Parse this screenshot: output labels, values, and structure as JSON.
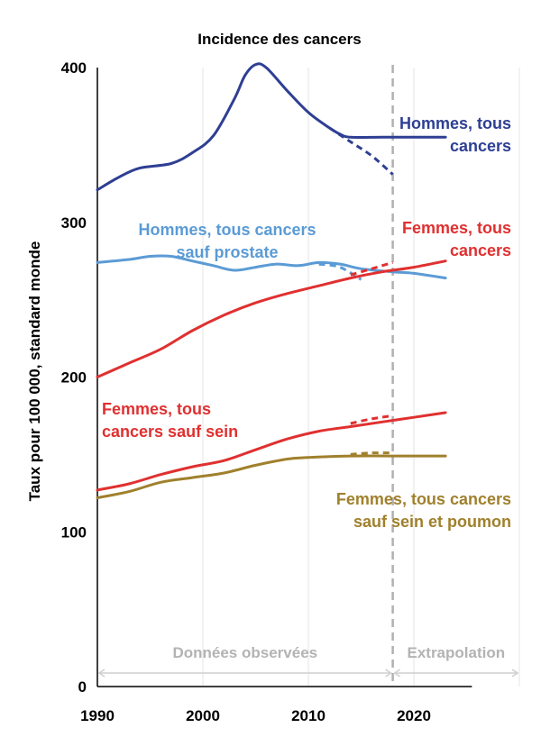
{
  "chart_data": {
    "type": "line",
    "title": "Incidence des cancers",
    "xlabel": "",
    "ylabel": "Taux pour 100 000, standard monde",
    "xlim": [
      1990,
      2030
    ],
    "ylim": [
      0,
      400
    ],
    "x_ticks": [
      "1990",
      "2000",
      "2010",
      "2020"
    ],
    "y_ticks": [
      "0",
      "100",
      "200",
      "300",
      "400"
    ],
    "grid": "vertical",
    "observed_until": 2018,
    "period_labels": {
      "observed": "Données observées",
      "extrapolation": "Extrapolation"
    },
    "series": [
      {
        "name": "Hommes, tous cancers",
        "color": "#2e3f93",
        "values": [
          [
            1990,
            321
          ],
          [
            1992,
            329
          ],
          [
            1994,
            335
          ],
          [
            1997,
            338
          ],
          [
            1999,
            345
          ],
          [
            2001,
            356
          ],
          [
            2003,
            380
          ],
          [
            2004,
            395
          ],
          [
            2005,
            402
          ],
          [
            2006,
            400
          ],
          [
            2008,
            385
          ],
          [
            2010,
            371
          ],
          [
            2012,
            361
          ],
          [
            2013,
            357
          ],
          [
            2014,
            355
          ],
          [
            2017,
            355
          ],
          [
            2020,
            355
          ],
          [
            2023,
            355
          ]
        ],
        "dashed_values": [
          [
            2012,
            361
          ],
          [
            2014,
            352
          ],
          [
            2016,
            343
          ],
          [
            2018,
            331
          ]
        ],
        "label": [
          "Hommes, tous",
          "cancers"
        ]
      },
      {
        "name": "Hommes, tous cancers sauf prostate",
        "color": "#5b9bd5",
        "values": [
          [
            1990,
            274
          ],
          [
            1993,
            276
          ],
          [
            1995,
            278
          ],
          [
            1997,
            278
          ],
          [
            1999,
            275
          ],
          [
            2001,
            272
          ],
          [
            2003,
            269
          ],
          [
            2005,
            271
          ],
          [
            2007,
            273
          ],
          [
            2009,
            272
          ],
          [
            2011,
            274
          ],
          [
            2013,
            273
          ],
          [
            2015,
            270
          ],
          [
            2018,
            268
          ],
          [
            2020,
            267
          ],
          [
            2023,
            264
          ]
        ],
        "dashed_values": [
          [
            2011,
            273
          ],
          [
            2013,
            271
          ],
          [
            2015,
            263
          ]
        ],
        "label": [
          "Hommes, tous cancers",
          "sauf prostate"
        ]
      },
      {
        "name": "Femmes, tous cancers",
        "color": "#e03030",
        "values": [
          [
            1990,
            200
          ],
          [
            1993,
            209
          ],
          [
            1996,
            218
          ],
          [
            1999,
            230
          ],
          [
            2002,
            240
          ],
          [
            2005,
            248
          ],
          [
            2008,
            254
          ],
          [
            2011,
            259
          ],
          [
            2014,
            264
          ],
          [
            2017,
            268
          ],
          [
            2020,
            271
          ],
          [
            2023,
            275
          ]
        ],
        "dashed_values": [
          [
            2014,
            266
          ],
          [
            2016,
            270
          ],
          [
            2018,
            274
          ]
        ],
        "label": [
          "Femmes, tous",
          "cancers"
        ]
      },
      {
        "name": "Femmes, tous cancers sauf sein",
        "color": "#e03030",
        "values": [
          [
            1990,
            127
          ],
          [
            1993,
            131
          ],
          [
            1996,
            137
          ],
          [
            1999,
            142
          ],
          [
            2002,
            146
          ],
          [
            2005,
            153
          ],
          [
            2008,
            160
          ],
          [
            2011,
            165
          ],
          [
            2014,
            168
          ],
          [
            2017,
            171
          ],
          [
            2020,
            174
          ],
          [
            2023,
            177
          ]
        ],
        "dashed_values": [
          [
            2014,
            170
          ],
          [
            2016,
            173
          ],
          [
            2018,
            175
          ]
        ],
        "label": [
          "Femmes, tous",
          "cancers sauf sein"
        ]
      },
      {
        "name": "Femmes, tous cancers sauf sein et poumon",
        "color": "#a0802c",
        "values": [
          [
            1990,
            122
          ],
          [
            1993,
            126
          ],
          [
            1996,
            132
          ],
          [
            1999,
            135
          ],
          [
            2002,
            138
          ],
          [
            2005,
            143
          ],
          [
            2008,
            147
          ],
          [
            2010,
            148
          ],
          [
            2014,
            149
          ],
          [
            2018,
            149
          ],
          [
            2023,
            149
          ]
        ],
        "dashed_values": [
          [
            2014,
            150
          ],
          [
            2016,
            151
          ],
          [
            2018,
            151
          ]
        ],
        "label": [
          "Femmes, tous cancers",
          "sauf sein et poumon"
        ]
      }
    ]
  }
}
